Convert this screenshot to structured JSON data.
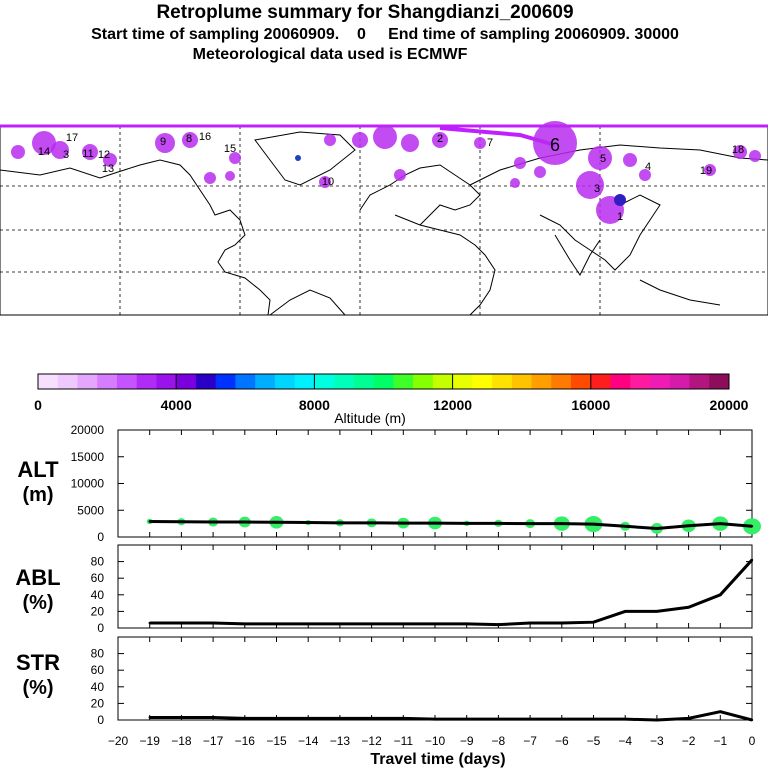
{
  "header": {
    "title": "Retroplume summary for Shangdianzi_200609",
    "subtitle": "Start time of sampling 20060909.    0     End time of sampling 20060909. 30000",
    "met_line": "Meteorological data used is ECMWF"
  },
  "colorbar": {
    "colors": [
      "#f7e0ff",
      "#efc8ff",
      "#e4a6ff",
      "#d57cff",
      "#c553ff",
      "#b02cf6",
      "#9a12ec",
      "#7a00e0",
      "#2a00c8",
      "#0032ff",
      "#0075ff",
      "#00aeff",
      "#00d5ff",
      "#00f0ff",
      "#00ffe0",
      "#00ffbb",
      "#00ff92",
      "#00ff66",
      "#3eff2a",
      "#86ff00",
      "#c4ff00",
      "#e8ff00",
      "#ffff00",
      "#ffe300",
      "#ffc400",
      "#ff9f00",
      "#ff7a00",
      "#ff4a00",
      "#ff1e1e",
      "#ff0080",
      "#ff1ba0",
      "#f01ab5",
      "#d61aa9",
      "#b3157f",
      "#8c0e5a"
    ],
    "tick_labels": [
      "0",
      "4000",
      "8000",
      "12000",
      "16000",
      "20000"
    ],
    "label": "Altitude (m)"
  },
  "chart_data": [
    {
      "type": "line",
      "panel": "ALT",
      "ylabel_line1": "ALT",
      "ylabel_line2": "(m)",
      "ylim": [
        0,
        20000
      ],
      "yticks": [
        "0",
        "5000",
        "10000",
        "15000",
        "20000"
      ],
      "x": [
        -19,
        -18,
        -17,
        -16,
        -15,
        -14,
        -13,
        -12,
        -11,
        -10,
        -9,
        -8,
        -7,
        -6,
        -5,
        -4,
        -3,
        -2,
        -1,
        0
      ],
      "values": [
        2900,
        2850,
        2800,
        2800,
        2750,
        2700,
        2650,
        2650,
        2600,
        2600,
        2550,
        2550,
        2500,
        2500,
        2400,
        2000,
        1600,
        2100,
        2500,
        2000
      ]
    },
    {
      "type": "line",
      "panel": "ABL",
      "ylabel_line1": "ABL",
      "ylabel_line2": "(%)",
      "ylim": [
        0,
        100
      ],
      "yticks": [
        "0",
        "20",
        "40",
        "60",
        "80"
      ],
      "x": [
        -19,
        -18,
        -17,
        -16,
        -15,
        -14,
        -13,
        -12,
        -11,
        -10,
        -9,
        -8,
        -7,
        -6,
        -5,
        -4,
        -3,
        -2,
        -1,
        0
      ],
      "values": [
        6,
        6,
        6,
        5,
        5,
        5,
        5,
        5,
        5,
        5,
        5,
        4,
        6,
        6,
        7,
        20,
        20,
        25,
        40,
        82
      ]
    },
    {
      "type": "line",
      "panel": "STR",
      "ylabel_line1": "STR",
      "ylabel_line2": "(%)",
      "ylim": [
        0,
        100
      ],
      "yticks": [
        "0",
        "20",
        "40",
        "60",
        "80"
      ],
      "x": [
        -19,
        -18,
        -17,
        -16,
        -15,
        -14,
        -13,
        -12,
        -11,
        -10,
        -9,
        -8,
        -7,
        -6,
        -5,
        -4,
        -3,
        -2,
        -1,
        0
      ],
      "values": [
        3,
        3,
        3,
        2,
        2,
        2,
        2,
        2,
        2,
        1,
        1,
        1,
        1,
        1,
        1,
        1,
        0,
        2,
        10,
        0
      ],
      "x_tick_labels": [
        "−20",
        "−19",
        "−18",
        "−17",
        "−16",
        "−15",
        "−14",
        "−13",
        "−12",
        "−11",
        "−10",
        "−9",
        "−8",
        "−7",
        "−6",
        "−5",
        "−4",
        "−3",
        "−2",
        "−1",
        "0"
      ],
      "xlabel": "Travel time (days)"
    }
  ],
  "map": {
    "plume_labels": [
      "14",
      "3",
      "11",
      "12",
      "17",
      "13",
      "9",
      "8",
      "15",
      "16",
      "10",
      "7",
      "2",
      "6",
      "5",
      "3",
      "4",
      "1",
      "19",
      "18"
    ]
  }
}
